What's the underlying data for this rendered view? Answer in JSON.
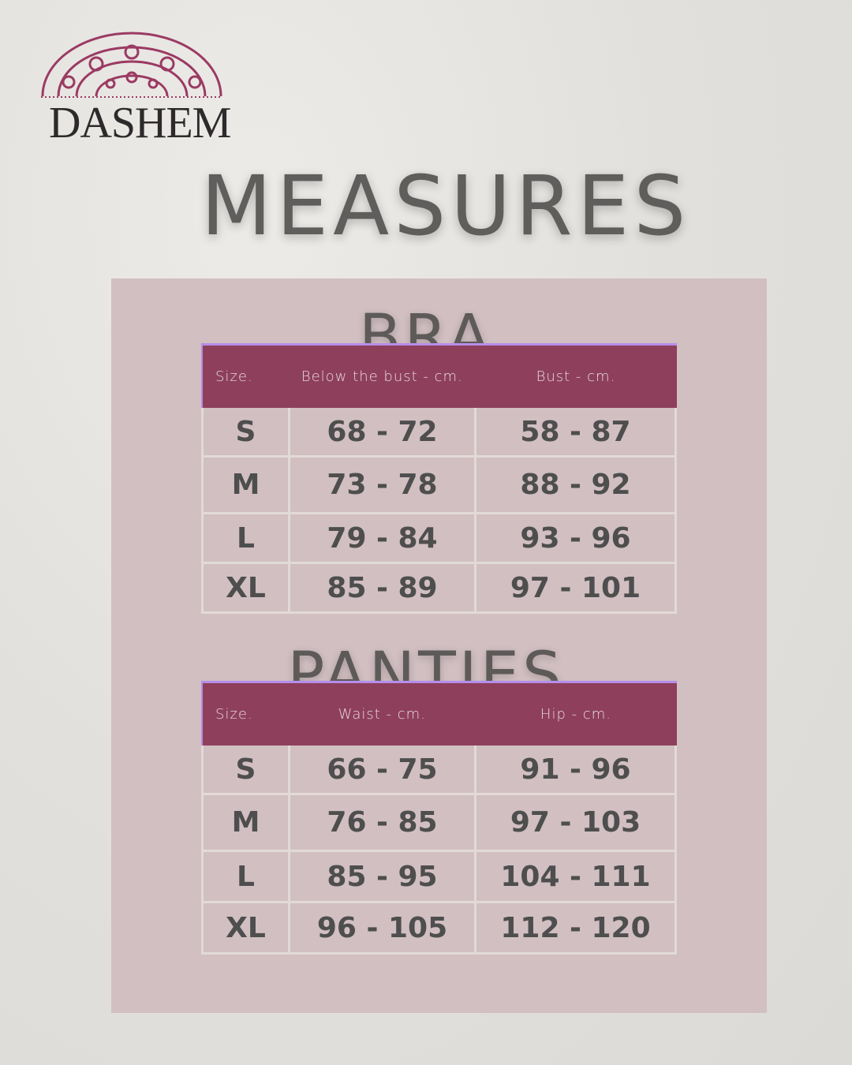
{
  "brand": {
    "logo_text": "DASHEM",
    "accent": "#8e3f5c"
  },
  "title": "MEASURES",
  "bra": {
    "heading": "BRA",
    "columns": [
      "Size.",
      "Below the bust - cm.",
      "Bust - cm."
    ],
    "rows": [
      [
        "S",
        "68 - 72",
        "58 - 87"
      ],
      [
        "M",
        "73 - 78",
        "88 - 92"
      ],
      [
        "L",
        "79 - 84",
        "93 - 96"
      ],
      [
        "XL",
        "85 - 89",
        "97 - 101"
      ]
    ]
  },
  "panties": {
    "heading": "PANTIES",
    "columns": [
      "Size.",
      "Waist - cm.",
      "Hip - cm."
    ],
    "rows": [
      [
        "S",
        "66 - 75",
        "91 - 96"
      ],
      [
        "M",
        "76 - 85",
        "97 - 103"
      ],
      [
        "L",
        "85 - 95",
        "104 - 111"
      ],
      [
        "XL",
        "96 - 105",
        "112 - 120"
      ]
    ]
  }
}
